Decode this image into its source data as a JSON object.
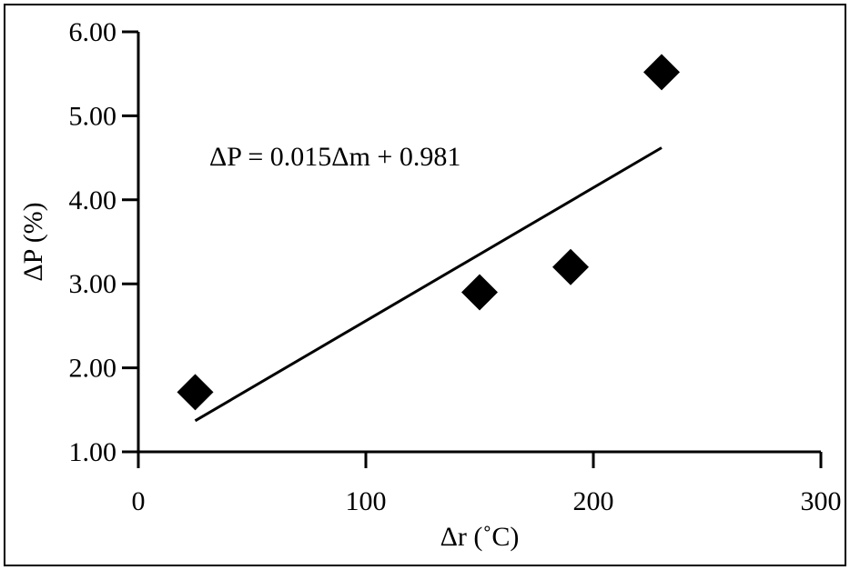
{
  "chart_data": {
    "type": "scatter",
    "title": "",
    "xlabel": "Δr (˚C)",
    "ylabel": "ΔP (%)",
    "xlim": [
      0,
      300
    ],
    "ylim": [
      1.0,
      6.0
    ],
    "xticks": [
      "0",
      "100",
      "200",
      "300"
    ],
    "yticks": [
      "1.00",
      "2.00",
      "3.00",
      "4.00",
      "5.00",
      "6.00"
    ],
    "grid": false,
    "legend": "none",
    "marker": "diamond",
    "marker_color": "#000000",
    "series": [
      {
        "x": [
          25,
          150,
          190,
          230
        ],
        "y": [
          1.71,
          2.9,
          3.2,
          5.52
        ]
      }
    ],
    "trendline": {
      "x": [
        25,
        230
      ],
      "y": [
        1.37,
        4.62
      ]
    },
    "annotation": "ΔP = 0.015Δm + 0.981"
  }
}
